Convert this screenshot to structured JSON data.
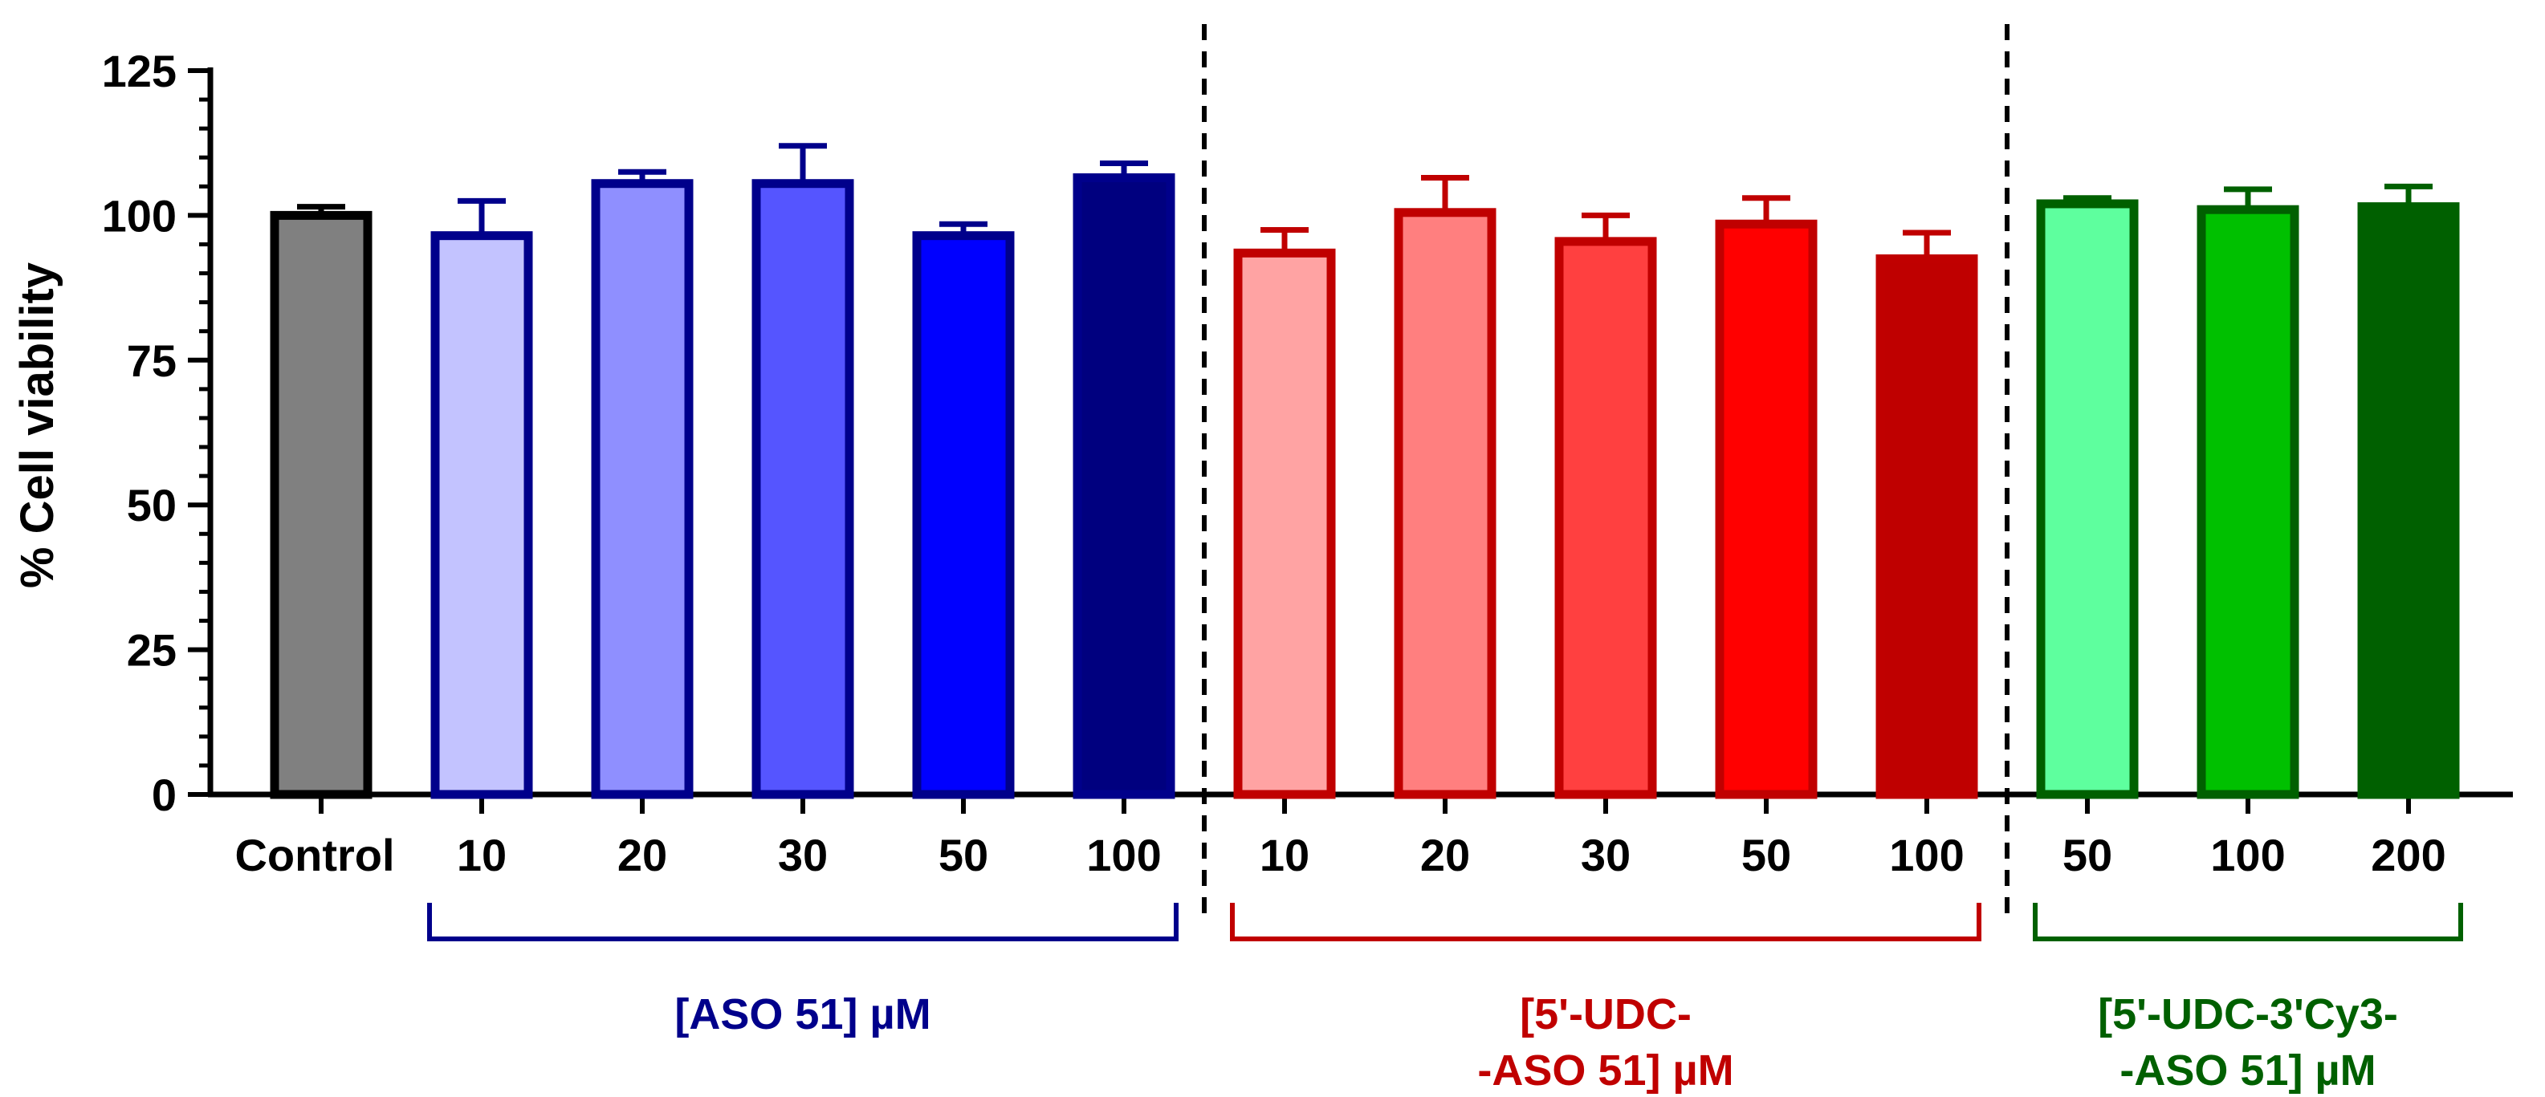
{
  "chart_data": {
    "type": "bar",
    "ylabel": "% Cell viability",
    "ylim": [
      0,
      125
    ],
    "y_ticks": [
      0,
      25,
      50,
      75,
      100,
      125
    ],
    "y_minor_step": 5,
    "grid": false,
    "categories": [
      "Control",
      "10",
      "20",
      "30",
      "50",
      "100",
      "10",
      "20",
      "30",
      "50",
      "100",
      "50",
      "100",
      "200"
    ],
    "values": [
      100,
      96.5,
      105.5,
      105.5,
      96.5,
      106.5,
      93.5,
      100.5,
      95.5,
      98.5,
      92.5,
      102,
      101,
      101.5
    ],
    "errors": [
      1.5,
      6,
      2,
      6.5,
      2,
      2.5,
      4,
      6,
      4.5,
      4.5,
      4.5,
      1,
      3.5,
      3.5
    ],
    "fill_colors": [
      "#808080",
      "#c3c3ff",
      "#8f8fff",
      "#5555ff",
      "#0000ff",
      "#00007f",
      "#ffa3a3",
      "#ff7f7f",
      "#ff4040",
      "#ff0000",
      "#bf0000",
      "#5eff9e",
      "#00c000",
      "#006000"
    ],
    "stroke_colors": [
      "#000000",
      "#00008b",
      "#00008b",
      "#00008b",
      "#00008b",
      "#00008b",
      "#c00000",
      "#c00000",
      "#c00000",
      "#c00000",
      "#c00000",
      "#006000",
      "#006000",
      "#006000"
    ],
    "groups": [
      {
        "label_lines": [
          "[ASO 51] µM"
        ],
        "from": 1,
        "to": 5,
        "color": "#00008b"
      },
      {
        "label_lines": [
          "[5'-UDC-",
          "-ASO 51] µM"
        ],
        "from": 6,
        "to": 10,
        "color": "#c00000"
      },
      {
        "label_lines": [
          "[5'-UDC-3'Cy3-",
          "-ASO 51] µM"
        ],
        "from": 11,
        "to": 13,
        "color": "#006000"
      }
    ],
    "separators_after": [
      5,
      10
    ]
  }
}
